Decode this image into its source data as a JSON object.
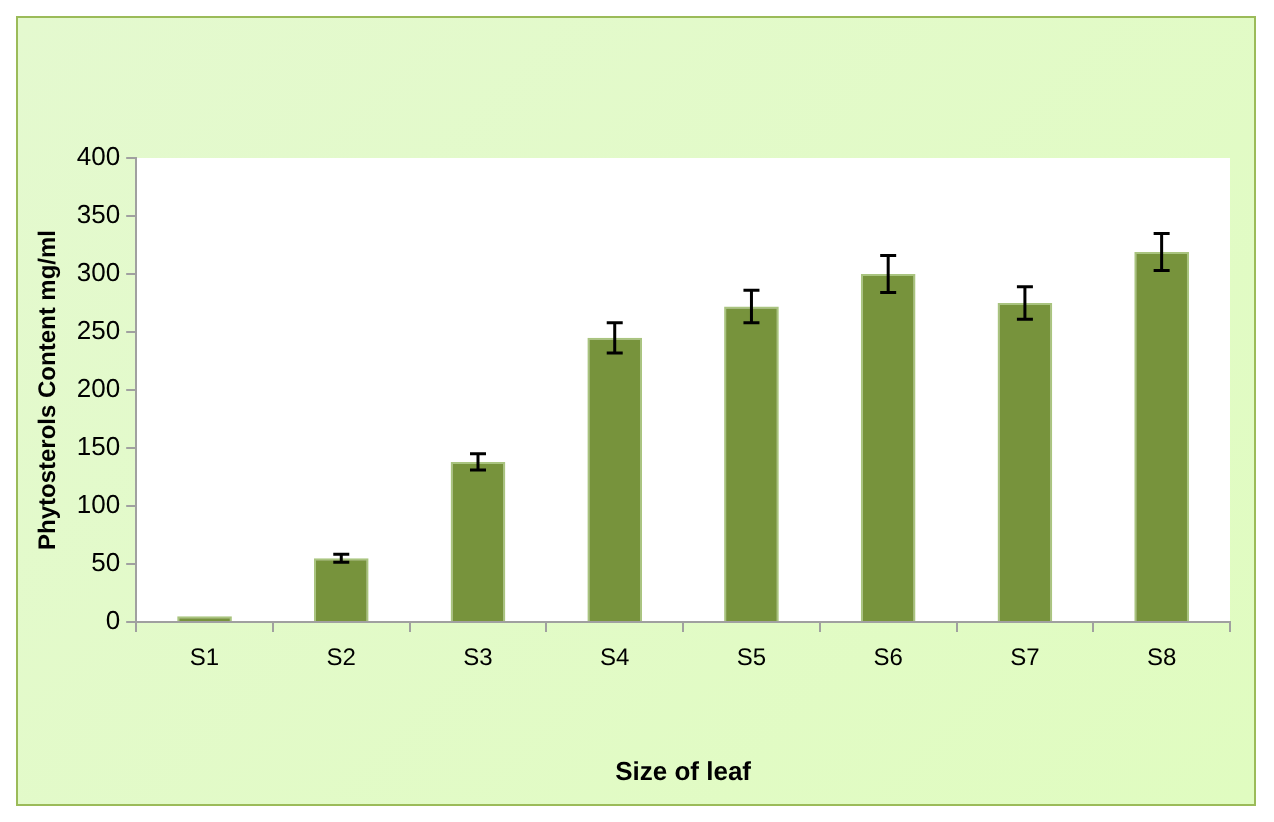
{
  "chart_data": {
    "type": "bar",
    "xlabel": "Size of leaf",
    "ylabel": "Phytosterols Content mg/ml",
    "categories": [
      "S1",
      "S2",
      "S3",
      "S4",
      "S5",
      "S6",
      "S7",
      "S8"
    ],
    "values": [
      5,
      55,
      138,
      245,
      272,
      300,
      275,
      319
    ],
    "errors": [
      null,
      3.5,
      7,
      13,
      14,
      16,
      14,
      16
    ],
    "color": "#77933c",
    "ylim": [
      0,
      400
    ],
    "yticks": [
      0,
      50,
      100,
      150,
      200,
      250,
      300,
      350,
      400
    ],
    "grid": false,
    "legend": false
  }
}
